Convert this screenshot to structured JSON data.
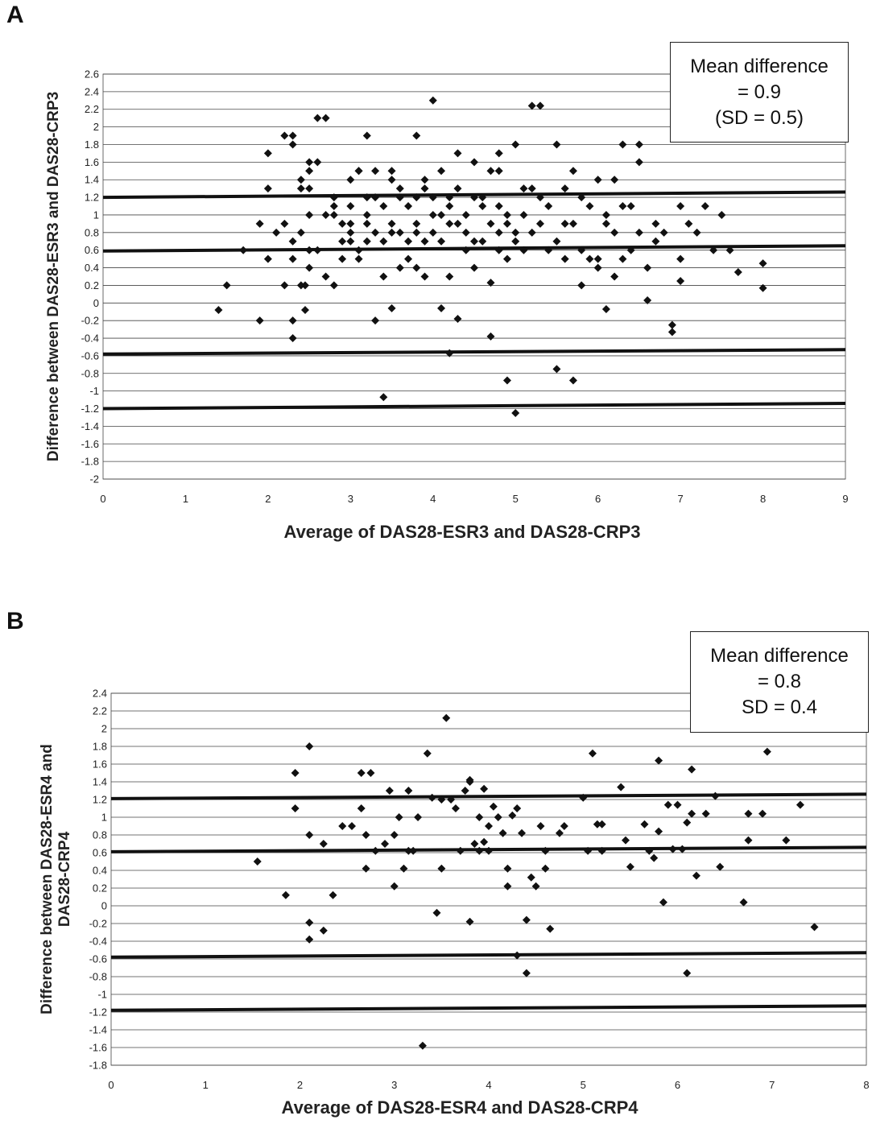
{
  "chart_data": [
    {
      "panel_label": "A",
      "type": "scatter",
      "xlabel": "Average of DAS28-ESR3 and DAS28-CRP3",
      "ylabel": "Difference between DAS28-ESR3 and DAS28-CRP3",
      "xlim": [
        0,
        9
      ],
      "ylim": [
        -2,
        2.6
      ],
      "xticks": [
        "0",
        "1",
        "2",
        "3",
        "4",
        "5",
        "6",
        "7",
        "8",
        "9"
      ],
      "yticks": [
        "2.6",
        "2.4",
        "2.2",
        "2",
        "1.8",
        "1.6",
        "1.4",
        "1.2",
        "1",
        "0.8",
        "0.6",
        "0.4",
        "0.2",
        "0",
        "-0.2",
        "-0.4",
        "-0.6",
        "-0.8",
        "-1",
        "-1.2",
        "-1.4",
        "-1.6",
        "-1.8",
        "-2"
      ],
      "grid": true,
      "annotation": [
        "Mean difference",
        "= 0.9",
        "(SD = 0.5)"
      ],
      "reference_lines": [
        {
          "from": [
            0,
            1.2
          ],
          "to": [
            9,
            1.26
          ]
        },
        {
          "from": [
            0,
            0.59
          ],
          "to": [
            9,
            0.65
          ]
        },
        {
          "from": [
            0,
            -0.58
          ],
          "to": [
            9,
            -0.53
          ]
        },
        {
          "from": [
            0,
            -1.2
          ],
          "to": [
            9,
            -1.14
          ]
        }
      ],
      "points": [
        [
          1.4,
          -0.08
        ],
        [
          1.5,
          0.2
        ],
        [
          1.7,
          0.6
        ],
        [
          1.9,
          -0.2
        ],
        [
          1.9,
          0.9
        ],
        [
          2.0,
          0.5
        ],
        [
          2.0,
          1.3
        ],
        [
          2.0,
          1.7
        ],
        [
          2.1,
          0.8
        ],
        [
          2.2,
          0.2
        ],
        [
          2.2,
          1.9
        ],
        [
          2.2,
          0.9
        ],
        [
          2.3,
          -0.2
        ],
        [
          2.3,
          -0.4
        ],
        [
          2.3,
          0.5
        ],
        [
          2.3,
          0.7
        ],
        [
          2.3,
          1.9
        ],
        [
          2.3,
          1.8
        ],
        [
          2.4,
          0.2
        ],
        [
          2.4,
          0.8
        ],
        [
          2.4,
          1.4
        ],
        [
          2.4,
          1.3
        ],
        [
          2.45,
          -0.08
        ],
        [
          2.45,
          0.2
        ],
        [
          2.5,
          0.4
        ],
        [
          2.5,
          0.6
        ],
        [
          2.5,
          1.0
        ],
        [
          2.5,
          1.3
        ],
        [
          2.5,
          1.6
        ],
        [
          2.5,
          1.5
        ],
        [
          2.6,
          0.6
        ],
        [
          2.6,
          1.6
        ],
        [
          2.6,
          2.1
        ],
        [
          2.7,
          1.0
        ],
        [
          2.7,
          2.1
        ],
        [
          2.7,
          0.3
        ],
        [
          2.8,
          0.2
        ],
        [
          2.8,
          1.1
        ],
        [
          2.8,
          1.2
        ],
        [
          2.8,
          1.0
        ],
        [
          2.9,
          0.5
        ],
        [
          2.9,
          0.9
        ],
        [
          2.9,
          0.7
        ],
        [
          3.0,
          1.4
        ],
        [
          3.0,
          1.1
        ],
        [
          3.0,
          0.9
        ],
        [
          3.0,
          0.8
        ],
        [
          3.0,
          0.7
        ],
        [
          3.1,
          1.5
        ],
        [
          3.1,
          1.5
        ],
        [
          3.1,
          0.6
        ],
        [
          3.1,
          0.5
        ],
        [
          3.2,
          1.9
        ],
        [
          3.2,
          1.2
        ],
        [
          3.2,
          0.7
        ],
        [
          3.2,
          0.9
        ],
        [
          3.2,
          1.0
        ],
        [
          3.3,
          0.8
        ],
        [
          3.3,
          -0.2
        ],
        [
          3.3,
          1.5
        ],
        [
          3.3,
          1.2
        ],
        [
          3.4,
          1.1
        ],
        [
          3.4,
          0.3
        ],
        [
          3.4,
          -1.07
        ],
        [
          3.4,
          0.7
        ],
        [
          3.5,
          1.4
        ],
        [
          3.5,
          -0.06
        ],
        [
          3.5,
          0.9
        ],
        [
          3.5,
          0.8
        ],
        [
          3.5,
          1.5
        ],
        [
          3.6,
          0.4
        ],
        [
          3.6,
          1.3
        ],
        [
          3.6,
          0.8
        ],
        [
          3.6,
          1.2
        ],
        [
          3.7,
          1.1
        ],
        [
          3.7,
          0.7
        ],
        [
          3.7,
          0.5
        ],
        [
          3.8,
          1.9
        ],
        [
          3.8,
          1.2
        ],
        [
          3.8,
          0.9
        ],
        [
          3.8,
          0.8
        ],
        [
          3.8,
          0.4
        ],
        [
          3.9,
          1.3
        ],
        [
          3.9,
          0.7
        ],
        [
          3.9,
          0.3
        ],
        [
          3.9,
          1.4
        ],
        [
          4.0,
          1.0
        ],
        [
          4.0,
          0.8
        ],
        [
          4.0,
          2.3
        ],
        [
          4.0,
          1.2
        ],
        [
          4.1,
          1.0
        ],
        [
          4.1,
          1.5
        ],
        [
          4.1,
          -0.06
        ],
        [
          4.1,
          0.7
        ],
        [
          4.2,
          0.9
        ],
        [
          4.2,
          1.2
        ],
        [
          4.2,
          1.1
        ],
        [
          4.2,
          0.3
        ],
        [
          4.2,
          -0.57
        ],
        [
          4.3,
          1.3
        ],
        [
          4.3,
          0.9
        ],
        [
          4.3,
          -0.18
        ],
        [
          4.3,
          1.7
        ],
        [
          4.4,
          0.6
        ],
        [
          4.4,
          1.0
        ],
        [
          4.4,
          0.8
        ],
        [
          4.5,
          1.2
        ],
        [
          4.5,
          0.4
        ],
        [
          4.5,
          0.7
        ],
        [
          4.5,
          1.6
        ],
        [
          4.6,
          1.2
        ],
        [
          4.6,
          1.1
        ],
        [
          4.6,
          0.7
        ],
        [
          4.7,
          0.23
        ],
        [
          4.7,
          0.9
        ],
        [
          4.7,
          1.5
        ],
        [
          4.7,
          -0.38
        ],
        [
          4.8,
          1.1
        ],
        [
          4.8,
          0.6
        ],
        [
          4.8,
          1.5
        ],
        [
          4.8,
          1.7
        ],
        [
          4.8,
          0.8
        ],
        [
          4.9,
          0.5
        ],
        [
          4.9,
          -0.88
        ],
        [
          4.9,
          0.9
        ],
        [
          4.9,
          1.0
        ],
        [
          5.0,
          -1.25
        ],
        [
          5.0,
          0.8
        ],
        [
          5.0,
          1.8
        ],
        [
          5.0,
          0.7
        ],
        [
          5.1,
          0.6
        ],
        [
          5.1,
          1.3
        ],
        [
          5.1,
          1.0
        ],
        [
          5.2,
          1.3
        ],
        [
          5.2,
          2.24
        ],
        [
          5.2,
          0.8
        ],
        [
          5.3,
          1.2
        ],
        [
          5.3,
          0.9
        ],
        [
          5.3,
          2.24
        ],
        [
          5.4,
          0.6
        ],
        [
          5.4,
          1.1
        ],
        [
          5.5,
          1.8
        ],
        [
          5.5,
          0.7
        ],
        [
          5.5,
          -0.75
        ],
        [
          5.6,
          0.5
        ],
        [
          5.6,
          1.3
        ],
        [
          5.6,
          0.9
        ],
        [
          5.7,
          1.5
        ],
        [
          5.7,
          0.9
        ],
        [
          5.7,
          -0.88
        ],
        [
          5.8,
          0.2
        ],
        [
          5.8,
          1.2
        ],
        [
          5.8,
          0.6
        ],
        [
          5.9,
          1.1
        ],
        [
          5.9,
          0.5
        ],
        [
          6.0,
          0.4
        ],
        [
          6.0,
          1.4
        ],
        [
          6.0,
          0.5
        ],
        [
          6.1,
          0.9
        ],
        [
          6.1,
          1.0
        ],
        [
          6.1,
          -0.07
        ],
        [
          6.2,
          1.4
        ],
        [
          6.2,
          0.8
        ],
        [
          6.2,
          0.3
        ],
        [
          6.3,
          1.8
        ],
        [
          6.3,
          1.1
        ],
        [
          6.3,
          0.5
        ],
        [
          6.4,
          1.1
        ],
        [
          6.4,
          0.6
        ],
        [
          6.5,
          1.8
        ],
        [
          6.5,
          1.6
        ],
        [
          6.5,
          0.8
        ],
        [
          6.6,
          0.4
        ],
        [
          6.6,
          0.03
        ],
        [
          6.7,
          0.7
        ],
        [
          6.7,
          0.9
        ],
        [
          6.8,
          0.8
        ],
        [
          6.9,
          -0.25
        ],
        [
          6.9,
          -0.33
        ],
        [
          7.0,
          0.5
        ],
        [
          7.0,
          1.1
        ],
        [
          7.0,
          0.25
        ],
        [
          7.1,
          0.9
        ],
        [
          7.2,
          0.8
        ],
        [
          7.3,
          1.1
        ],
        [
          7.4,
          0.6
        ],
        [
          7.5,
          1.0
        ],
        [
          7.6,
          0.6
        ],
        [
          7.7,
          0.35
        ],
        [
          8.0,
          0.45
        ],
        [
          8.0,
          0.17
        ]
      ]
    },
    {
      "panel_label": "B",
      "type": "scatter",
      "xlabel": "Average of DAS28-ESR4 and DAS28-CRP4",
      "ylabel": "Difference between DAS28-ESR4 and DAS28-CRP4",
      "xlim": [
        0,
        8
      ],
      "ylim": [
        -1.8,
        2.4
      ],
      "xticks": [
        "0",
        "1",
        "2",
        "3",
        "4",
        "5",
        "6",
        "7",
        "8"
      ],
      "yticks": [
        "2.4",
        "2.2",
        "2",
        "1.8",
        "1.6",
        "1.4",
        "1.2",
        "1",
        "0.8",
        "0.6",
        "0.4",
        "0.2",
        "0",
        "-0.2",
        "-0.4",
        "-0.6",
        "-0.8",
        "-1",
        "-1.2",
        "-1.4",
        "-1.6",
        "-1.8"
      ],
      "grid": true,
      "annotation": [
        "Mean difference",
        "= 0.8",
        "SD = 0.4"
      ],
      "reference_lines": [
        {
          "from": [
            0,
            1.21
          ],
          "to": [
            8,
            1.26
          ]
        },
        {
          "from": [
            0,
            0.61
          ],
          "to": [
            8,
            0.66
          ]
        },
        {
          "from": [
            0,
            -0.58
          ],
          "to": [
            8,
            -0.53
          ]
        },
        {
          "from": [
            0,
            -1.18
          ],
          "to": [
            8,
            -1.13
          ]
        }
      ],
      "points": [
        [
          1.55,
          0.5
        ],
        [
          1.85,
          0.12
        ],
        [
          1.95,
          1.5
        ],
        [
          1.95,
          1.1
        ],
        [
          2.1,
          1.8
        ],
        [
          2.1,
          0.8
        ],
        [
          2.1,
          -0.19
        ],
        [
          2.1,
          -0.38
        ],
        [
          2.25,
          0.7
        ],
        [
          2.25,
          -0.28
        ],
        [
          2.35,
          0.12
        ],
        [
          2.45,
          0.9
        ],
        [
          2.55,
          0.9
        ],
        [
          2.65,
          1.5
        ],
        [
          2.65,
          1.1
        ],
        [
          2.7,
          0.8
        ],
        [
          2.7,
          0.42
        ],
        [
          2.75,
          1.5
        ],
        [
          2.8,
          0.62
        ],
        [
          2.9,
          0.7
        ],
        [
          2.95,
          1.3
        ],
        [
          3.0,
          0.8
        ],
        [
          3.0,
          0.22
        ],
        [
          3.05,
          1.0
        ],
        [
          3.1,
          0.42
        ],
        [
          3.15,
          1.3
        ],
        [
          3.15,
          0.62
        ],
        [
          3.2,
          0.62
        ],
        [
          3.25,
          1.0
        ],
        [
          3.3,
          -1.58
        ],
        [
          3.35,
          1.72
        ],
        [
          3.4,
          1.22
        ],
        [
          3.45,
          -0.08
        ],
        [
          3.5,
          1.2
        ],
        [
          3.5,
          0.42
        ],
        [
          3.55,
          2.12
        ],
        [
          3.6,
          1.2
        ],
        [
          3.65,
          1.1
        ],
        [
          3.7,
          0.62
        ],
        [
          3.75,
          1.3
        ],
        [
          3.8,
          1.42
        ],
        [
          3.8,
          1.4
        ],
        [
          3.8,
          -0.18
        ],
        [
          3.85,
          0.7
        ],
        [
          3.9,
          0.62
        ],
        [
          3.9,
          1.0
        ],
        [
          3.95,
          1.32
        ],
        [
          3.95,
          0.72
        ],
        [
          4.0,
          0.62
        ],
        [
          4.0,
          0.9
        ],
        [
          4.05,
          1.12
        ],
        [
          4.1,
          1.0
        ],
        [
          4.15,
          0.82
        ],
        [
          4.2,
          0.42
        ],
        [
          4.2,
          0.22
        ],
        [
          4.25,
          1.02
        ],
        [
          4.3,
          -0.56
        ],
        [
          4.3,
          1.1
        ],
        [
          4.35,
          0.82
        ],
        [
          4.4,
          -0.16
        ],
        [
          4.4,
          -0.76
        ],
        [
          4.45,
          0.32
        ],
        [
          4.5,
          0.22
        ],
        [
          4.55,
          0.9
        ],
        [
          4.6,
          0.62
        ],
        [
          4.6,
          0.42
        ],
        [
          4.65,
          -0.26
        ],
        [
          4.75,
          0.82
        ],
        [
          4.8,
          0.9
        ],
        [
          5.0,
          1.22
        ],
        [
          5.05,
          0.62
        ],
        [
          5.1,
          1.72
        ],
        [
          5.15,
          0.92
        ],
        [
          5.2,
          0.62
        ],
        [
          5.2,
          0.92
        ],
        [
          5.4,
          1.34
        ],
        [
          5.45,
          0.74
        ],
        [
          5.5,
          0.44
        ],
        [
          5.65,
          0.92
        ],
        [
          5.7,
          0.62
        ],
        [
          5.75,
          0.54
        ],
        [
          5.8,
          1.64
        ],
        [
          5.8,
          0.84
        ],
        [
          5.85,
          0.04
        ],
        [
          5.9,
          1.14
        ],
        [
          5.95,
          0.64
        ],
        [
          6.0,
          1.14
        ],
        [
          6.05,
          0.64
        ],
        [
          6.1,
          -0.76
        ],
        [
          6.1,
          0.94
        ],
        [
          6.15,
          1.04
        ],
        [
          6.15,
          1.54
        ],
        [
          6.2,
          0.34
        ],
        [
          6.3,
          1.04
        ],
        [
          6.4,
          1.24
        ],
        [
          6.45,
          0.44
        ],
        [
          6.7,
          0.04
        ],
        [
          6.75,
          1.04
        ],
        [
          6.75,
          0.74
        ],
        [
          6.9,
          1.04
        ],
        [
          6.95,
          1.74
        ],
        [
          7.15,
          0.74
        ],
        [
          7.3,
          1.14
        ],
        [
          7.45,
          -0.24
        ]
      ]
    }
  ]
}
